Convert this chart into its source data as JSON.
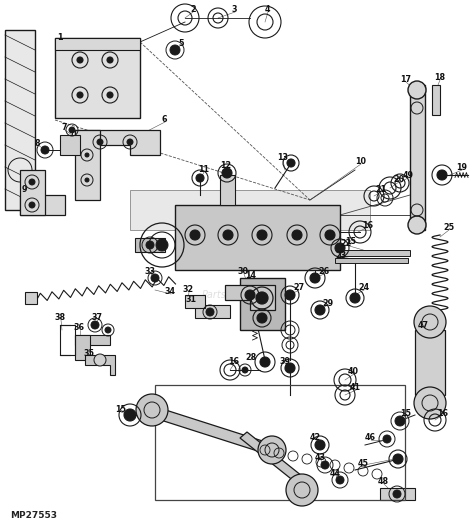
{
  "bg_color": "#f0ede8",
  "line_color": "#1a1a1a",
  "text_color": "#111111",
  "watermark": "PartsStream™",
  "watermark_color": "#bbbbbb",
  "doc_id": "MP27553",
  "fig_width": 4.74,
  "fig_height": 5.24,
  "dpi": 100,
  "label_fs": 5.8,
  "doc_id_fs": 6.5
}
